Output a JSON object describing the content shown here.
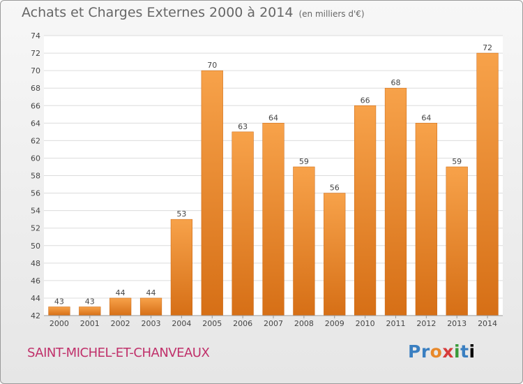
{
  "header": {
    "title": "Achats et Charges Externes 2000 à 2014",
    "subtitle": "(en milliers d'€)"
  },
  "footer": {
    "place": "SAINT-MICHEL-ET-CHANVEAUX",
    "logo": "Proxiti"
  },
  "colors": {
    "bar_light": "#f7a24a",
    "bar_dark": "#d66f16",
    "grid": "#dcdcdc",
    "place_text": "#c0306a"
  },
  "chart_data": {
    "type": "bar",
    "title": "Achats et Charges Externes 2000 à 2014",
    "subtitle": "(en milliers d'€)",
    "xlabel": "",
    "ylabel": "",
    "categories": [
      "2000",
      "2001",
      "2002",
      "2003",
      "2004",
      "2005",
      "2006",
      "2007",
      "2008",
      "2009",
      "2010",
      "2011",
      "2012",
      "2013",
      "2014"
    ],
    "values": [
      43,
      43,
      44,
      44,
      53,
      70,
      63,
      64,
      59,
      56,
      66,
      68,
      64,
      59,
      72
    ],
    "ylim": [
      42,
      74
    ],
    "yticks": [
      42,
      44,
      46,
      48,
      50,
      52,
      54,
      56,
      58,
      60,
      62,
      64,
      66,
      68,
      70,
      72,
      74
    ],
    "grid": true,
    "data_labels": true
  }
}
